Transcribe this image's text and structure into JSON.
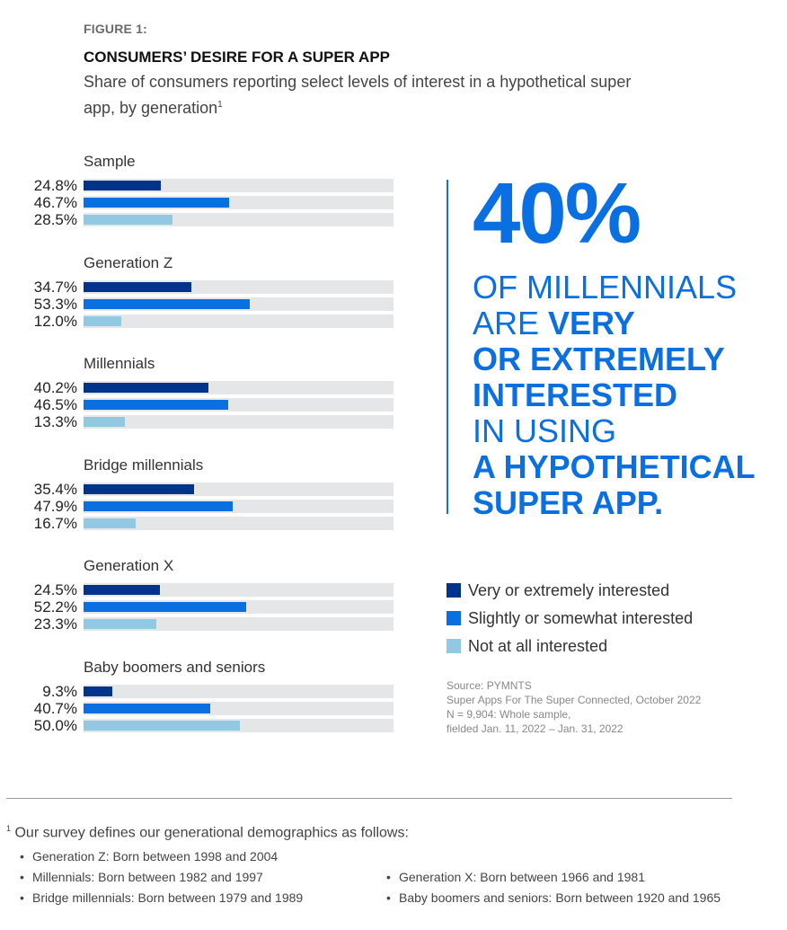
{
  "figure_label": "FIGURE 1:",
  "title": "CONSUMERS’ DESIRE FOR A SUPER APP",
  "subtitle": "Share of consumers reporting select levels of interest in a hypothetical super app, by generation",
  "subtitle_footnote_mark": "1",
  "colors": {
    "very": "#00348a",
    "slightly": "#0a6fe0",
    "not": "#92c9e2",
    "track": "#e5e6e8",
    "accent": "#0a6fe0"
  },
  "chart_data": {
    "type": "bar",
    "orientation": "horizontal",
    "title": "CONSUMERS’ DESIRE FOR A SUPER APP",
    "xlim": [
      0,
      100
    ],
    "unit": "%",
    "categories": [
      "Sample",
      "Generation Z",
      "Millennials",
      "Bridge millennials",
      "Generation X",
      "Baby boomers and seniors"
    ],
    "series": [
      {
        "name": "Very or extremely interested",
        "values": [
          24.8,
          34.7,
          40.2,
          35.4,
          24.5,
          9.3
        ]
      },
      {
        "name": "Slightly or somewhat interested",
        "values": [
          46.7,
          53.3,
          46.5,
          47.9,
          52.2,
          40.7
        ]
      },
      {
        "name": "Not at all interested",
        "values": [
          28.5,
          12.0,
          13.3,
          16.7,
          23.3,
          50.0
        ]
      }
    ],
    "value_labels": [
      [
        "24.8%",
        "46.7%",
        "28.5%"
      ],
      [
        "34.7%",
        "53.3%",
        "12.0%"
      ],
      [
        "40.2%",
        "46.5%",
        "13.3%"
      ],
      [
        "35.4%",
        "47.9%",
        "16.7%"
      ],
      [
        "24.5%",
        "52.2%",
        "23.3%"
      ],
      [
        "9.3%",
        "40.7%",
        "50.0%"
      ]
    ],
    "legend_position": "right"
  },
  "callout": {
    "big_number": "40%",
    "lines": [
      [
        {
          "text": "OF MILLENNIALS",
          "bold": false
        }
      ],
      [
        {
          "text": "ARE ",
          "bold": false
        },
        {
          "text": "VERY",
          "bold": true
        }
      ],
      [
        {
          "text": "OR EXTREMELY",
          "bold": true
        }
      ],
      [
        {
          "text": "INTERESTED",
          "bold": true
        }
      ],
      [
        {
          "text": "IN USING",
          "bold": false
        }
      ],
      [
        {
          "text": "A HYPOTHETICAL",
          "bold": true
        }
      ],
      [
        {
          "text": "SUPER APP.",
          "bold": true
        }
      ]
    ]
  },
  "legend": [
    "Very or extremely interested",
    "Slightly or somewhat interested",
    "Not at all interested"
  ],
  "source": [
    "Source: PYMNTS",
    "Super Apps For The Super Connected, October 2022",
    "N = 9,904: Whole sample,",
    "fielded Jan. 11, 2022 – Jan. 31, 2022"
  ],
  "footnote": {
    "mark": "1",
    "text": "Our survey defines our generational demographics as follows:",
    "items": [
      "Generation Z: Born between 1998 and 2004",
      "Millennials: Born between 1982 and 1997",
      "Bridge millennials: Born between 1979 and 1989",
      "Generation X: Born between 1966 and 1981",
      "Baby boomers and seniors: Born between 1920 and 1965"
    ]
  }
}
